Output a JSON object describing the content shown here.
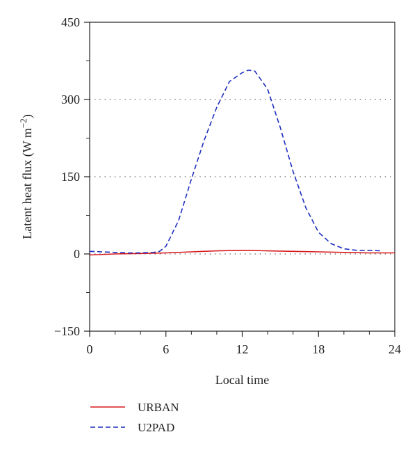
{
  "chart_data": {
    "type": "line",
    "xlabel": "Local time",
    "ylabel": "Latent heat flux (W m",
    "ylabel_unit_superscript": "−2",
    "ylabel_suffix": ")",
    "xlim": [
      0,
      24
    ],
    "ylim": [
      -150,
      450
    ],
    "x_ticks": [
      0,
      6,
      12,
      18,
      24
    ],
    "x_tick_labels": [
      "0",
      "6",
      "12",
      "18",
      "24"
    ],
    "x_minor_ticks": [
      2,
      4,
      8,
      10,
      14,
      16,
      20,
      22
    ],
    "y_ticks": [
      -150,
      0,
      150,
      300,
      450
    ],
    "y_tick_labels": [
      "−150",
      "0",
      "150",
      "300",
      "450"
    ],
    "y_minor_ticks": [
      -75,
      75,
      225,
      375
    ],
    "reference_lines": [
      0,
      150,
      300
    ],
    "legend_placement": "below",
    "series": [
      {
        "name": "URBAN",
        "color": "#d7191c",
        "style": "solid",
        "x": [
          0,
          2,
          4,
          6,
          8,
          10,
          12,
          12.5,
          14,
          16,
          18,
          20,
          22,
          24
        ],
        "y": [
          -2,
          0,
          1,
          2,
          4,
          6,
          7,
          7,
          6,
          5,
          4,
          3,
          2,
          2
        ]
      },
      {
        "name": "U2PAD",
        "color": "#1f2fbf",
        "style": "dashed",
        "x": [
          0,
          1,
          2,
          3,
          4,
          5,
          5.5,
          6,
          7,
          8,
          9,
          10,
          11,
          12,
          12.5,
          13,
          14,
          15,
          16,
          17,
          18,
          19,
          20,
          21,
          22,
          23
        ],
        "y": [
          5,
          4,
          3,
          2,
          2,
          3,
          5,
          15,
          65,
          145,
          220,
          285,
          335,
          352,
          357,
          355,
          320,
          245,
          160,
          90,
          42,
          20,
          10,
          7,
          7,
          6
        ]
      }
    ]
  }
}
